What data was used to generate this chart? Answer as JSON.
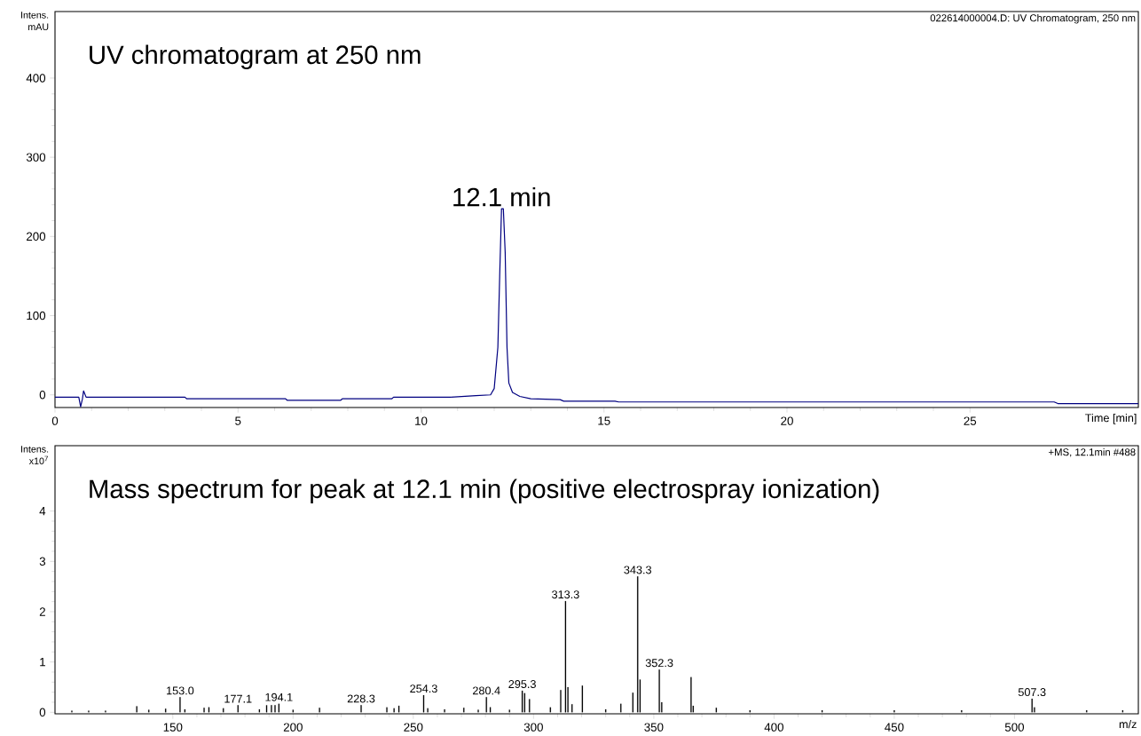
{
  "chart_data": [
    {
      "type": "line",
      "title": "UV chromatogram at 250 nm",
      "xlabel": "Time [min]",
      "ylabel": "Intens. mAU",
      "color": "#000080",
      "x": [
        0,
        0.65,
        0.7,
        0.75,
        0.78,
        0.85,
        3.55,
        3.6,
        6.3,
        6.35,
        7.8,
        7.85,
        9.2,
        9.25,
        10.8,
        11.5,
        11.9,
        12.0,
        12.1,
        12.15,
        12.2,
        12.25,
        12.3,
        12.35,
        12.4,
        12.5,
        12.7,
        13.0,
        13.8,
        13.9,
        15.3,
        15.4,
        27.3,
        27.4,
        29.6
      ],
      "values": [
        -3,
        -3,
        -15,
        -5,
        5,
        -3,
        -3,
        -5,
        -5,
        -7,
        -7,
        -5,
        -5,
        -3,
        -3,
        -1,
        0,
        8,
        60,
        150,
        235,
        235,
        180,
        60,
        15,
        3,
        -2,
        -5,
        -6,
        -8,
        -8,
        -9,
        -9,
        -11,
        -11
      ],
      "xlim": [
        0,
        29.6
      ],
      "ylim": [
        -16,
        484
      ],
      "xticks": [
        0,
        5,
        10,
        15,
        20,
        25
      ],
      "yticks": [
        0,
        100,
        200,
        300,
        400
      ],
      "annotations": [
        "022614000004.D: UV Chromatogram, 250 nm",
        {
          "text": "12.1 min",
          "x": 12.2,
          "y": 235
        }
      ]
    },
    {
      "type": "bar",
      "title": "Mass spectrum for peak at 12.1 min (positive electrospray ionization)",
      "xlabel": "m/z",
      "ylabel": "Intens. x10$^{7}$",
      "color": "#000000",
      "x": [
        108,
        115,
        122,
        135,
        140,
        147,
        153.0,
        155,
        163,
        165,
        171,
        177.1,
        186,
        189,
        191,
        192.5,
        194.1,
        200,
        211,
        228.3,
        239,
        242,
        244,
        254.3,
        256,
        263,
        271,
        277,
        280.4,
        282,
        290,
        295.3,
        296.3,
        298.3,
        307,
        311.3,
        313.3,
        314.3,
        316,
        320.3,
        330,
        336.3,
        341.3,
        343.3,
        344.3,
        352.3,
        353.3,
        365.5,
        366.4,
        376,
        390,
        420,
        450,
        478,
        507.3,
        508.3,
        530,
        545
      ],
      "values": [
        0.03,
        0.03,
        0.03,
        0.12,
        0.05,
        0.07,
        0.3,
        0.06,
        0.09,
        0.1,
        0.08,
        0.14,
        0.06,
        0.14,
        0.14,
        0.14,
        0.17,
        0.05,
        0.09,
        0.14,
        0.1,
        0.08,
        0.13,
        0.34,
        0.08,
        0.06,
        0.09,
        0.05,
        0.3,
        0.1,
        0.05,
        0.43,
        0.38,
        0.26,
        0.1,
        0.44,
        2.21,
        0.5,
        0.16,
        0.53,
        0.06,
        0.17,
        0.39,
        2.7,
        0.65,
        0.85,
        0.2,
        0.7,
        0.13,
        0.09,
        0.04,
        0.04,
        0.04,
        0.04,
        0.27,
        0.1,
        0.04,
        0.04
      ],
      "xlim": [
        101,
        551.5
      ],
      "ylim": [
        -0.03,
        5.3
      ],
      "xticks": [
        150,
        200,
        250,
        300,
        350,
        400,
        450,
        500
      ],
      "yticks": [
        0,
        1,
        2,
        3,
        4
      ],
      "annotations": [
        "+MS, 12.1min #488",
        {
          "text": "153.0",
          "x": 153.0,
          "y": 0.3
        },
        {
          "text": "177.1",
          "x": 177.1,
          "y": 0.14
        },
        {
          "text": "194.1",
          "x": 194.1,
          "y": 0.17
        },
        {
          "text": "228.3",
          "x": 228.3,
          "y": 0.14
        },
        {
          "text": "254.3",
          "x": 254.3,
          "y": 0.34
        },
        {
          "text": "280.4",
          "x": 280.4,
          "y": 0.3
        },
        {
          "text": "295.3",
          "x": 295.3,
          "y": 0.43
        },
        {
          "text": "313.3",
          "x": 313.3,
          "y": 2.21
        },
        {
          "text": "343.3",
          "x": 343.3,
          "y": 2.7
        },
        {
          "text": "352.3",
          "x": 352.3,
          "y": 0.85
        },
        {
          "text": "507.3",
          "x": 507.3,
          "y": 0.27
        }
      ]
    }
  ]
}
